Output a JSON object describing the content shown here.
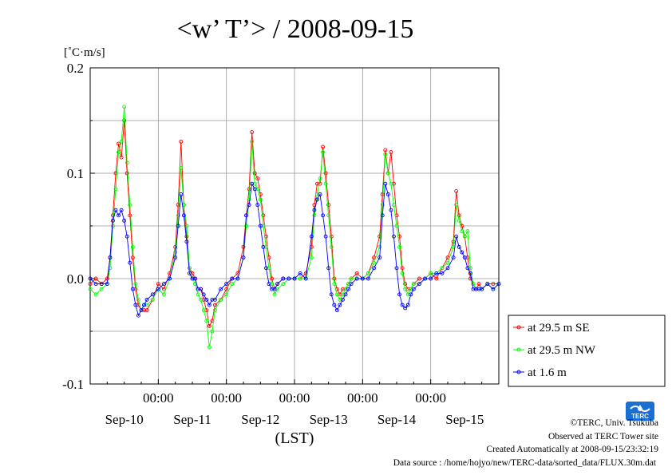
{
  "chart_data": {
    "type": "line",
    "title": "<w’ T’> / 2008-09-15",
    "ylabel": "[˚C·m/s]",
    "xlabel": "(LST)",
    "ylim": [
      -0.1,
      0.2
    ],
    "yticks": [
      "-0.1",
      "0.0",
      "0.1",
      "0.2"
    ],
    "xlim_hours": [
      0,
      144
    ],
    "xticks_time": [
      "00:00",
      "00:00",
      "00:00",
      "00:00",
      "00:00"
    ],
    "xticks_date": [
      "Sep-10",
      "Sep-11",
      "Sep-12",
      "Sep-13",
      "Sep-14",
      "Sep-15"
    ],
    "grid": true,
    "legend_position": "right-bottom",
    "x_unit": "hours since Sep-10 00:00 LST",
    "series": [
      {
        "name": "at 29.5 m SE",
        "color": "#ff0000",
        "x": [
          0,
          2,
          4,
          6,
          7,
          8,
          9,
          10,
          11,
          12,
          13,
          14,
          15,
          16,
          17,
          18,
          19,
          20,
          22,
          24,
          26,
          28,
          30,
          31,
          32,
          33,
          34,
          35,
          36,
          37,
          38,
          39,
          40,
          41,
          42,
          43,
          44,
          46,
          48,
          50,
          52,
          54,
          55,
          56,
          57,
          58,
          59,
          60,
          61,
          62,
          63,
          64,
          65,
          66,
          68,
          70,
          72,
          74,
          76,
          78,
          79,
          80,
          81,
          82,
          83,
          84,
          85,
          86,
          87,
          88,
          89,
          90,
          91,
          92,
          94,
          96,
          98,
          100,
          102,
          103,
          104,
          105,
          106,
          107,
          108,
          109,
          110,
          111,
          112,
          113,
          114,
          116,
          118,
          120,
          122,
          124,
          126,
          128,
          129,
          130,
          131,
          132,
          133,
          134,
          135,
          136,
          137,
          138,
          140,
          142,
          144
        ],
        "values": [
          -0.005,
          0.0,
          -0.005,
          0.0,
          0.02,
          0.06,
          0.1,
          0.128,
          0.115,
          0.15,
          0.1,
          0.06,
          0.02,
          -0.01,
          -0.025,
          -0.03,
          -0.03,
          -0.03,
          -0.02,
          -0.005,
          -0.01,
          0.005,
          0.03,
          0.07,
          0.13,
          0.07,
          0.04,
          0.01,
          0.005,
          0.0,
          -0.01,
          -0.01,
          -0.02,
          -0.03,
          -0.045,
          -0.04,
          -0.025,
          -0.02,
          -0.01,
          0.0,
          0.005,
          0.03,
          0.06,
          0.085,
          0.139,
          0.1,
          0.095,
          0.08,
          0.06,
          0.04,
          0.02,
          0.0,
          -0.01,
          -0.005,
          0.0,
          0.0,
          0.0,
          0.0,
          0.005,
          0.03,
          0.07,
          0.09,
          0.09,
          0.125,
          0.1,
          0.07,
          0.04,
          0.0,
          -0.01,
          -0.015,
          -0.01,
          -0.01,
          -0.005,
          0.0,
          0.005,
          0.0,
          0.005,
          0.02,
          0.04,
          0.08,
          0.122,
          0.1,
          0.12,
          0.09,
          0.06,
          0.04,
          0.01,
          -0.005,
          -0.01,
          -0.01,
          -0.005,
          0.0,
          0.0,
          0.005,
          0.0,
          0.01,
          0.02,
          0.035,
          0.083,
          0.06,
          0.05,
          0.04,
          0.02,
          0.0,
          -0.005,
          -0.01,
          -0.005,
          -0.01,
          -0.005,
          -0.005,
          -0.005
        ]
      },
      {
        "name": "at 29.5 m NW",
        "color": "#00ff00",
        "x": [
          0,
          2,
          4,
          6,
          7,
          8,
          9,
          10,
          11,
          12,
          13,
          14,
          15,
          16,
          17,
          18,
          19,
          20,
          22,
          24,
          26,
          28,
          30,
          31,
          32,
          33,
          34,
          35,
          36,
          37,
          38,
          39,
          40,
          41,
          42,
          43,
          44,
          46,
          48,
          50,
          52,
          54,
          55,
          56,
          57,
          58,
          59,
          60,
          61,
          62,
          63,
          64,
          65,
          66,
          68,
          70,
          72,
          74,
          76,
          78,
          79,
          80,
          81,
          82,
          83,
          84,
          85,
          86,
          87,
          88,
          89,
          90,
          91,
          92,
          94,
          96,
          98,
          100,
          102,
          103,
          104,
          105,
          106,
          107,
          108,
          109,
          110,
          111,
          112,
          113,
          114,
          116,
          118,
          120,
          122,
          124,
          126,
          128,
          129,
          130,
          131,
          132,
          133,
          134,
          135,
          136,
          137,
          138,
          140,
          142,
          144
        ],
        "values": [
          -0.01,
          -0.015,
          -0.01,
          -0.005,
          0.01,
          0.05,
          0.085,
          0.12,
          0.13,
          0.163,
          0.11,
          0.07,
          0.03,
          -0.005,
          -0.02,
          -0.03,
          -0.025,
          -0.025,
          -0.02,
          -0.01,
          -0.015,
          0.0,
          0.025,
          0.06,
          0.105,
          0.07,
          0.05,
          0.01,
          0.0,
          -0.005,
          -0.015,
          -0.02,
          -0.03,
          -0.04,
          -0.065,
          -0.05,
          -0.03,
          -0.02,
          -0.015,
          -0.005,
          0.0,
          0.02,
          0.05,
          0.075,
          0.13,
          0.09,
          0.085,
          0.075,
          0.05,
          0.03,
          0.01,
          -0.005,
          -0.015,
          -0.01,
          -0.005,
          0.0,
          0.0,
          0.0,
          0.0,
          0.02,
          0.06,
          0.08,
          0.095,
          0.12,
          0.09,
          0.06,
          0.03,
          -0.005,
          -0.015,
          -0.02,
          -0.015,
          -0.01,
          -0.005,
          0.0,
          0.0,
          0.0,
          0.005,
          0.015,
          0.03,
          0.07,
          0.118,
          0.1,
          0.09,
          0.07,
          0.05,
          0.03,
          0.005,
          -0.01,
          -0.015,
          -0.01,
          -0.005,
          -0.005,
          0.0,
          0.005,
          0.005,
          0.01,
          0.015,
          0.03,
          0.07,
          0.055,
          0.045,
          0.04,
          0.045,
          0.01,
          -0.005,
          -0.01,
          -0.01,
          -0.01,
          -0.005,
          -0.01,
          -0.005
        ]
      },
      {
        "name": "at 1.6 m",
        "color": "#0000ff",
        "x": [
          0,
          2,
          4,
          6,
          7,
          8,
          9,
          10,
          11,
          12,
          13,
          14,
          15,
          16,
          17,
          18,
          19,
          20,
          22,
          24,
          26,
          28,
          30,
          31,
          32,
          33,
          34,
          35,
          36,
          37,
          38,
          39,
          40,
          41,
          42,
          43,
          44,
          46,
          48,
          50,
          52,
          54,
          55,
          56,
          57,
          58,
          59,
          60,
          61,
          62,
          63,
          64,
          65,
          66,
          68,
          70,
          72,
          74,
          76,
          78,
          79,
          80,
          81,
          82,
          83,
          84,
          85,
          86,
          87,
          88,
          89,
          90,
          91,
          92,
          94,
          96,
          98,
          100,
          102,
          103,
          104,
          105,
          106,
          107,
          108,
          109,
          110,
          111,
          112,
          113,
          114,
          116,
          118,
          120,
          122,
          124,
          126,
          128,
          129,
          130,
          131,
          132,
          133,
          134,
          135,
          136,
          137,
          138,
          140,
          142,
          144
        ],
        "values": [
          0.0,
          -0.005,
          -0.005,
          -0.005,
          0.02,
          0.055,
          0.065,
          0.06,
          0.065,
          0.055,
          0.04,
          0.015,
          -0.01,
          -0.025,
          -0.035,
          -0.03,
          -0.025,
          -0.02,
          -0.015,
          -0.01,
          -0.005,
          0.0,
          0.02,
          0.05,
          0.08,
          0.06,
          0.035,
          0.005,
          0.0,
          0.0,
          -0.01,
          -0.01,
          -0.015,
          -0.02,
          -0.025,
          -0.02,
          -0.02,
          -0.01,
          -0.005,
          0.0,
          0.0,
          0.02,
          0.06,
          0.07,
          0.09,
          0.085,
          0.07,
          0.05,
          0.03,
          0.01,
          -0.005,
          -0.01,
          -0.01,
          -0.005,
          0.0,
          0.0,
          0.0,
          0.005,
          0.0,
          0.04,
          0.065,
          0.075,
          0.08,
          0.06,
          0.04,
          0.01,
          -0.015,
          -0.025,
          -0.03,
          -0.025,
          -0.02,
          -0.015,
          -0.01,
          -0.005,
          0.0,
          0.0,
          0.0,
          0.01,
          0.02,
          0.06,
          0.09,
          0.08,
          0.065,
          0.04,
          0.01,
          -0.015,
          -0.025,
          -0.028,
          -0.025,
          -0.015,
          -0.01,
          -0.005,
          0.0,
          0.0,
          0.005,
          0.005,
          0.01,
          0.02,
          0.04,
          0.03,
          0.025,
          0.02,
          0.01,
          0.005,
          -0.01,
          -0.01,
          -0.01,
          -0.01,
          -0.005,
          -0.01,
          -0.005
        ]
      }
    ]
  },
  "credits": {
    "copyright": "©TERC, Univ. Tsukuba",
    "observed": "Observed at TERC Tower site",
    "created": "Created Automatically at 2008-09-15/23:32:19",
    "source": "Data source : /home/hojyo/new/TERC-data/sorted_data/FLUX.30m.dat"
  },
  "logo": {
    "text": "TERC",
    "color": "#1a6fd4"
  }
}
